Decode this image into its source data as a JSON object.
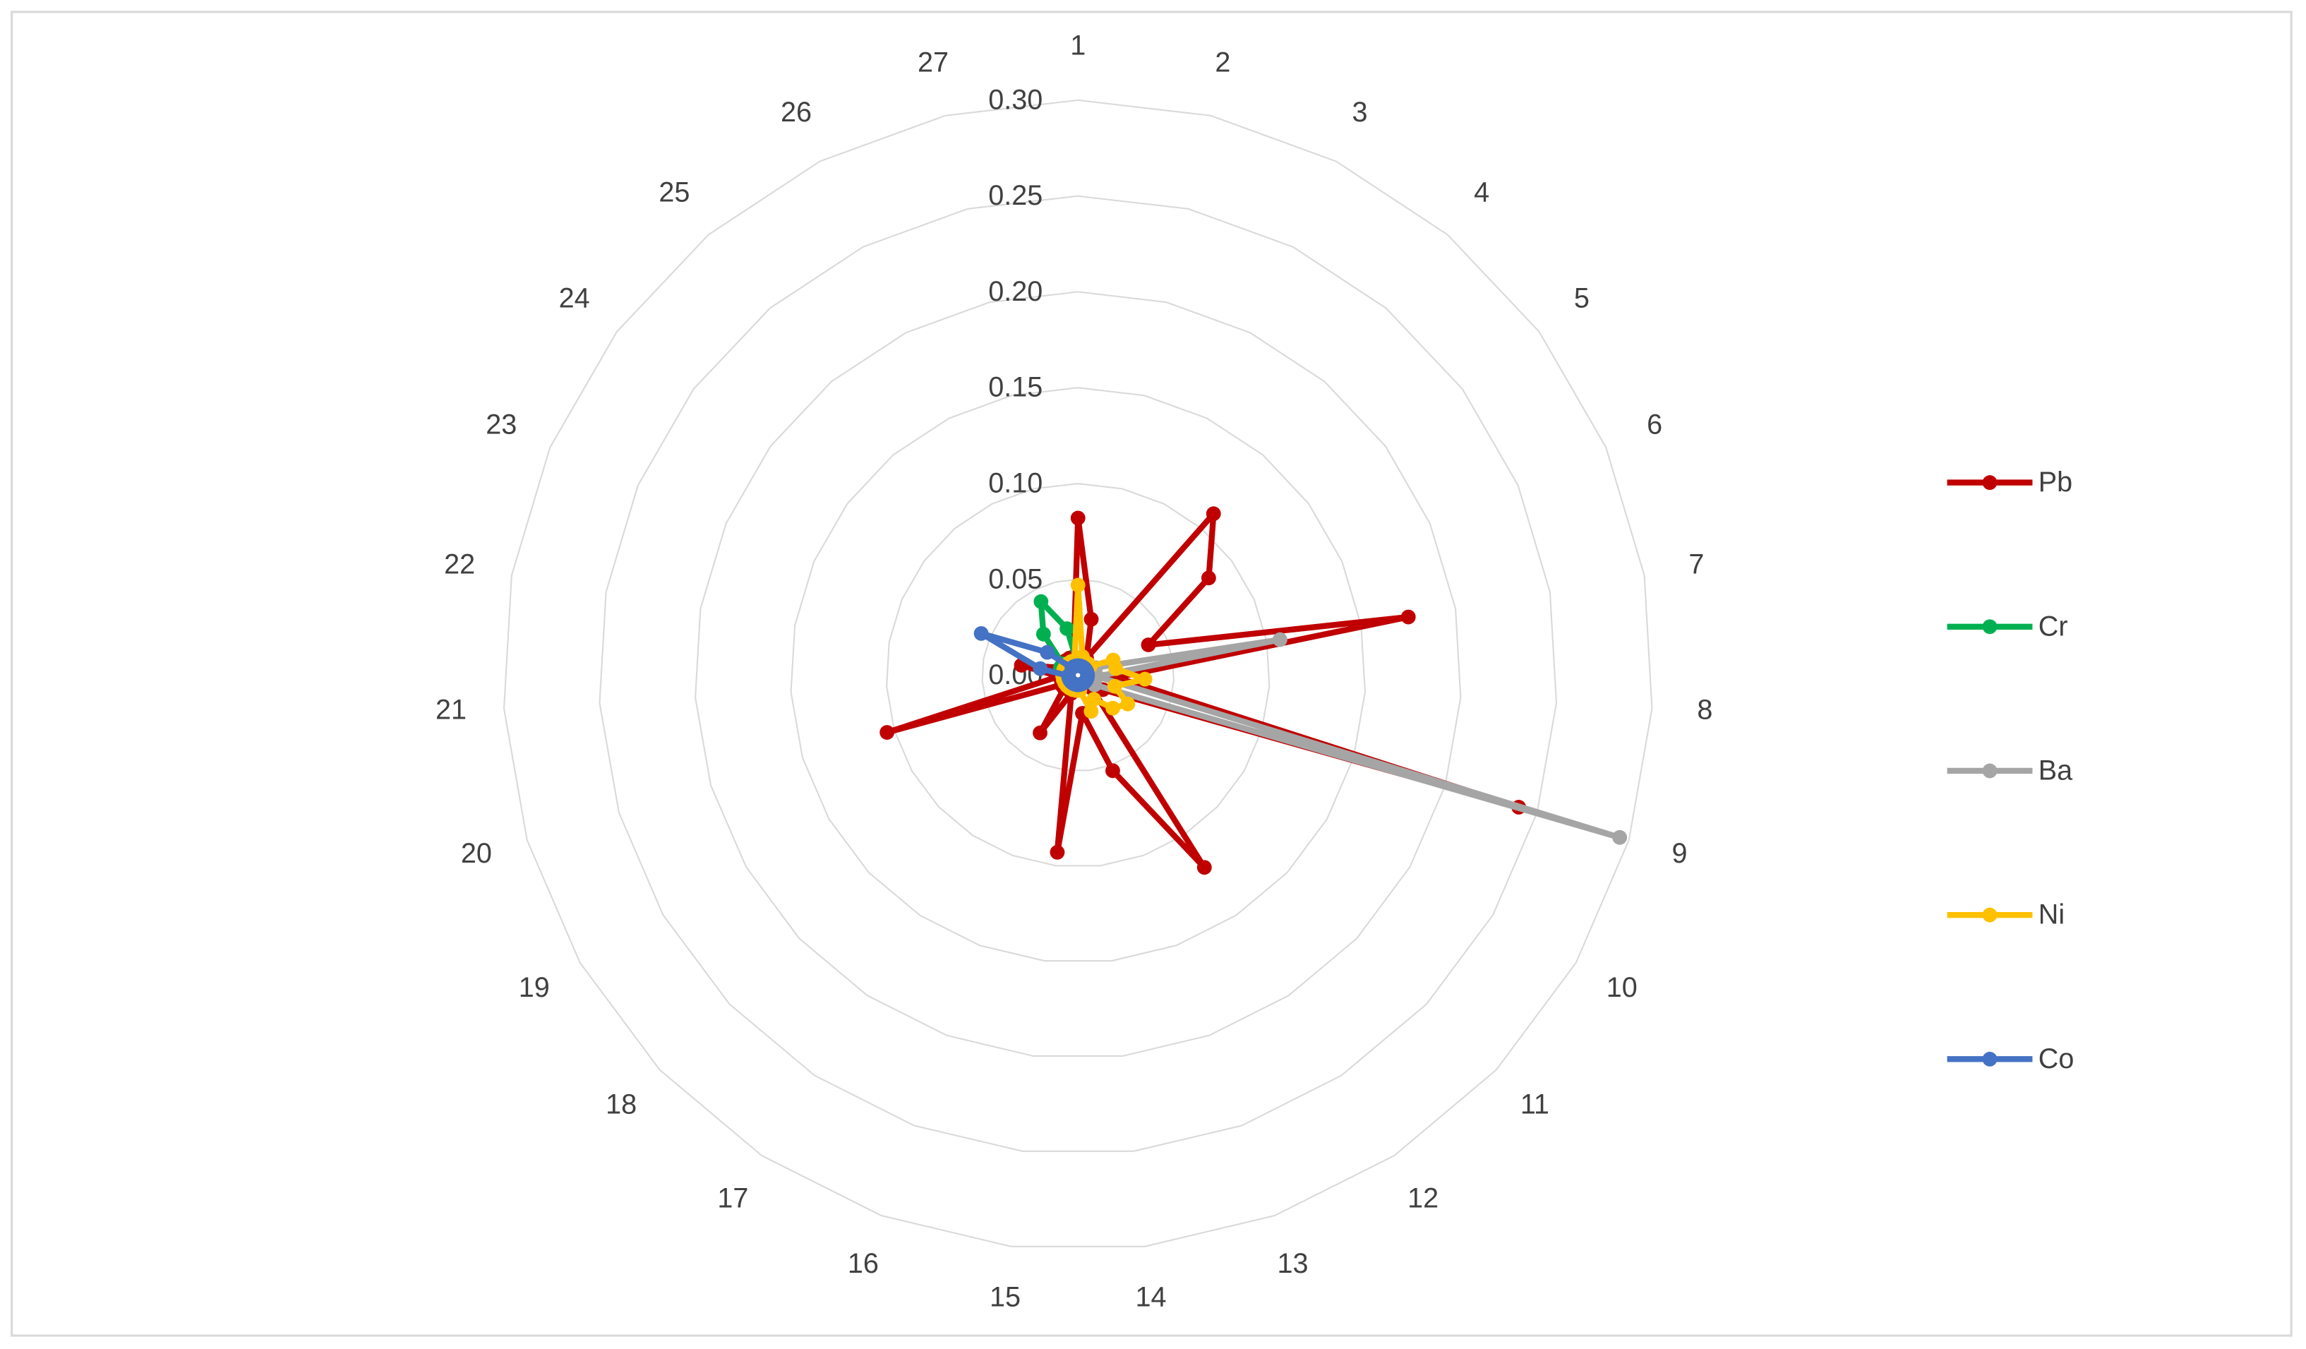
{
  "chart_data": {
    "type": "radar",
    "categories": [
      "1",
      "2",
      "3",
      "4",
      "5",
      "6",
      "7",
      "8",
      "9",
      "10",
      "11",
      "12",
      "13",
      "14",
      "15",
      "16",
      "17",
      "18",
      "19",
      "20",
      "21",
      "22",
      "23",
      "24",
      "25",
      "26",
      "27"
    ],
    "ylim": [
      0,
      0.3
    ],
    "yticks": [
      {
        "value": 0,
        "label": "0.00"
      },
      {
        "value": 0.05,
        "label": "0.05"
      },
      {
        "value": 0.1,
        "label": "0.10"
      },
      {
        "value": 0.15,
        "label": "0.15"
      },
      {
        "value": 0.2,
        "label": "0.20"
      },
      {
        "value": 0.25,
        "label": "0.25"
      },
      {
        "value": 0.3,
        "label": "0.30"
      }
    ],
    "grid": true,
    "legend": "right",
    "series": [
      {
        "name": "Pb",
        "color": "#c00000",
        "values": [
          0.082,
          0.03,
          0.01,
          0.11,
          0.085,
          0.04,
          0.175,
          0.02,
          0.24,
          0.015,
          0.01,
          0.12,
          0.053,
          0.02,
          0.093,
          0.01,
          0.036,
          0.01,
          0.01,
          0.104,
          0.01,
          0.03,
          0.01,
          0.01,
          0.01,
          0.01,
          0.01
        ]
      },
      {
        "name": "Cr",
        "color": "#00b050",
        "values": [
          0.005,
          0.005,
          0.005,
          0.005,
          0.005,
          0.005,
          0.005,
          0.005,
          0.005,
          0.005,
          0.005,
          0.005,
          0.005,
          0.005,
          0.005,
          0.005,
          0.005,
          0.005,
          0.005,
          0.005,
          0.005,
          0.005,
          0.01,
          0.01,
          0.028,
          0.043,
          0.025
        ]
      },
      {
        "name": "Ba",
        "color": "#a5a5a5",
        "values": [
          0.005,
          0.005,
          0.005,
          0.005,
          0.005,
          0.01,
          0.107,
          0.01,
          0.295,
          0.01,
          0.005,
          0.005,
          0.005,
          0.005,
          0.005,
          0.005,
          0.005,
          0.005,
          0.005,
          0.005,
          0.005,
          0.005,
          0.005,
          0.005,
          0.005,
          0.005,
          0.005
        ]
      },
      {
        "name": "Ni",
        "color": "#ffc000",
        "values": [
          0.047,
          0.01,
          0.008,
          0.008,
          0.008,
          0.02,
          0.02,
          0.035,
          0.02,
          0.03,
          0.025,
          0.015,
          0.02,
          0.008,
          0.008,
          0.008,
          0.008,
          0.008,
          0.008,
          0.008,
          0.008,
          0.008,
          0.008,
          0.008,
          0.008,
          0.008,
          0.008
        ]
      },
      {
        "name": "Co",
        "color": "#4472c4",
        "values": [
          0.005,
          0.005,
          0.005,
          0.005,
          0.005,
          0.005,
          0.005,
          0.005,
          0.005,
          0.005,
          0.005,
          0.005,
          0.005,
          0.005,
          0.005,
          0.005,
          0.005,
          0.005,
          0.005,
          0.005,
          0.005,
          0.02,
          0.055,
          0.02,
          0.005,
          0.005,
          0.005
        ]
      }
    ]
  }
}
